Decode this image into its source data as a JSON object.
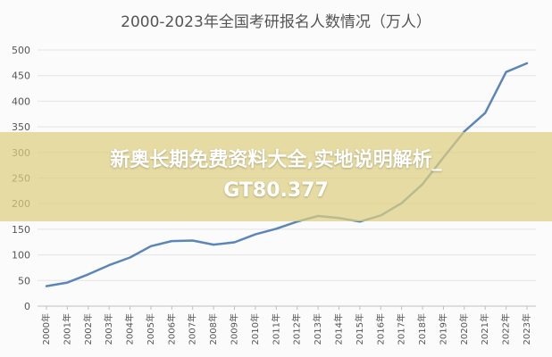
{
  "chart_data": {
    "type": "line",
    "title": "2000-2023年全国考研报名人数情况（万人）",
    "xlabel": "",
    "ylabel": "",
    "ylim": [
      0,
      500
    ],
    "yticks": [
      0,
      50,
      100,
      150,
      200,
      250,
      300,
      350,
      400,
      450,
      500
    ],
    "grid": true,
    "categories": [
      "2000年",
      "2001年",
      "2002年",
      "2003年",
      "2004年",
      "2005年",
      "2006年",
      "2007年",
      "2008年",
      "2009年",
      "2010年",
      "2011年",
      "2012年",
      "2013年",
      "2014年",
      "2015年",
      "2016年",
      "2017年",
      "2018年",
      "2019年",
      "2020年",
      "2021年",
      "2022年",
      "2023年"
    ],
    "series": [
      {
        "values": [
          39,
          46,
          62,
          80,
          95,
          117,
          127,
          128,
          120,
          124.6,
          140,
          151,
          165,
          176,
          172,
          164.9,
          177,
          201,
          238,
          290,
          341,
          377,
          457,
          474
        ],
        "color": "#5b86b8"
      }
    ]
  },
  "overlay": {
    "line1": "新奥长期免费资料大全,实地说明解析_",
    "line2": "GT80.377"
  }
}
